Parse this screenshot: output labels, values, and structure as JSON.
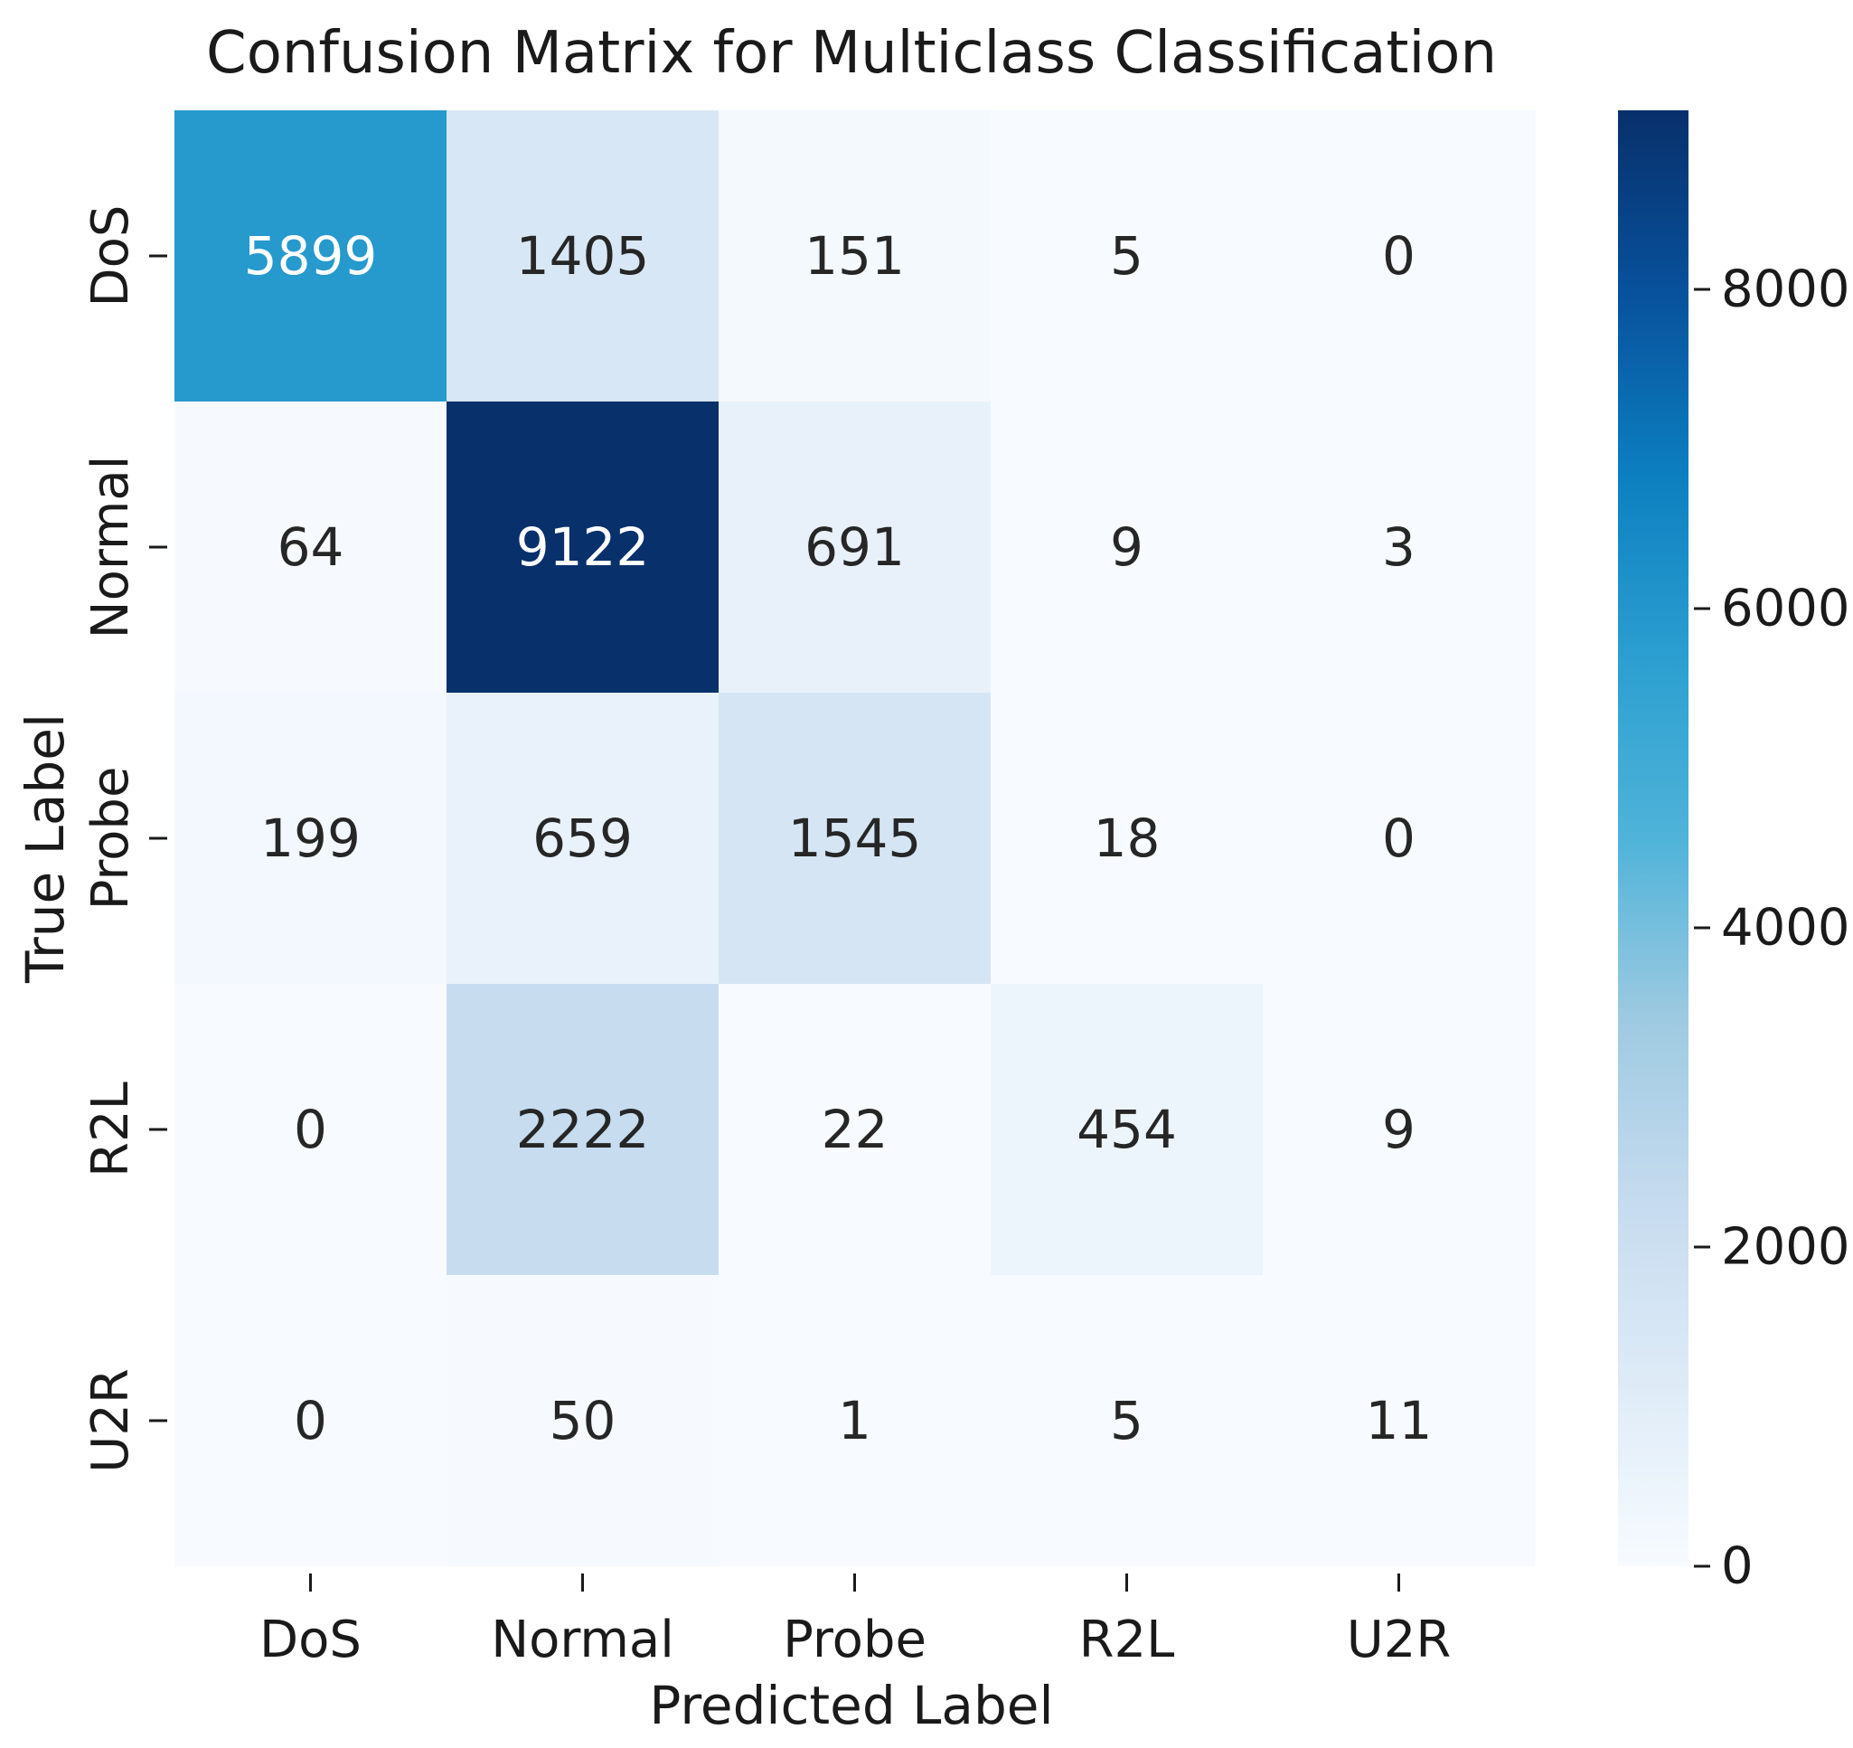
{
  "chart_data": {
    "type": "heatmap",
    "title": "Confusion Matrix for Multiclass Classification",
    "xlabel": "Predicted Label",
    "ylabel": "True Label",
    "x_categories": [
      "DoS",
      "Normal",
      "Probe",
      "R2L",
      "U2R"
    ],
    "y_categories": [
      "DoS",
      "Normal",
      "Probe",
      "R2L",
      "U2R"
    ],
    "values": [
      [
        5899,
        1405,
        151,
        5,
        0
      ],
      [
        64,
        9122,
        691,
        9,
        3
      ],
      [
        199,
        659,
        1545,
        18,
        0
      ],
      [
        0,
        2222,
        22,
        454,
        9
      ],
      [
        0,
        50,
        1,
        5,
        11
      ]
    ],
    "colormap": "Blues",
    "colorbar": {
      "range": [
        0,
        9122
      ],
      "ticks": [
        0,
        2000,
        4000,
        6000,
        8000
      ]
    }
  }
}
